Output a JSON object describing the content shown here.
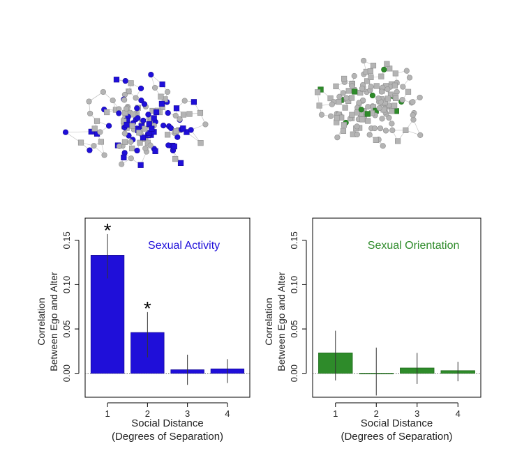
{
  "colors": {
    "activity": "#1f0fd9",
    "activity_stroke": "#15099a",
    "orientation": "#2e8b2a",
    "orientation_stroke": "#1e6a1b",
    "node_gray": "#b4b4b4",
    "edge_gray": "#c8c8c8"
  },
  "networks": [
    {
      "name": "sexual-activity-network",
      "highlight": "activity",
      "seed": 11
    },
    {
      "name": "sexual-orientation-network",
      "highlight": "orientation",
      "seed": 29
    }
  ],
  "chart_data": [
    {
      "type": "bar",
      "annotation_title": "Sexual Activity",
      "color_key": "activity",
      "categories": [
        "1",
        "2",
        "3",
        "4"
      ],
      "values": [
        0.133,
        0.046,
        0.004,
        0.005
      ],
      "error_low": [
        0.107,
        0.018,
        -0.013,
        -0.011
      ],
      "error_high": [
        0.157,
        0.069,
        0.021,
        0.016
      ],
      "significance": [
        "*",
        "*",
        "",
        ""
      ],
      "xlabel": "Social Distance",
      "xlabel_line2": "(Degrees of Separation)",
      "ylabel": "Correlation",
      "ylabel_line2": "Between Ego and Alter",
      "yticks": [
        "0.00",
        "0.05",
        "0.10",
        "0.15"
      ],
      "ylim": [
        -0.027,
        0.175
      ],
      "grid": false,
      "legend": "none"
    },
    {
      "type": "bar",
      "annotation_title": "Sexual Orientation",
      "color_key": "orientation",
      "categories": [
        "1",
        "2",
        "3",
        "4"
      ],
      "values": [
        0.023,
        0.0,
        0.006,
        0.003
      ],
      "error_low": [
        -0.008,
        -0.025,
        -0.012,
        -0.009
      ],
      "error_high": [
        0.048,
        0.029,
        0.023,
        0.013
      ],
      "significance": [
        "",
        "",
        "",
        ""
      ],
      "xlabel": "Social Distance",
      "xlabel_line2": "(Degrees of Separation)",
      "ylabel": "Correlation",
      "ylabel_line2": "Between Ego and Alter",
      "yticks": [
        "0.00",
        "0.05",
        "0.10",
        "0.15"
      ],
      "ylim": [
        -0.027,
        0.175
      ],
      "grid": false,
      "legend": "none"
    }
  ]
}
